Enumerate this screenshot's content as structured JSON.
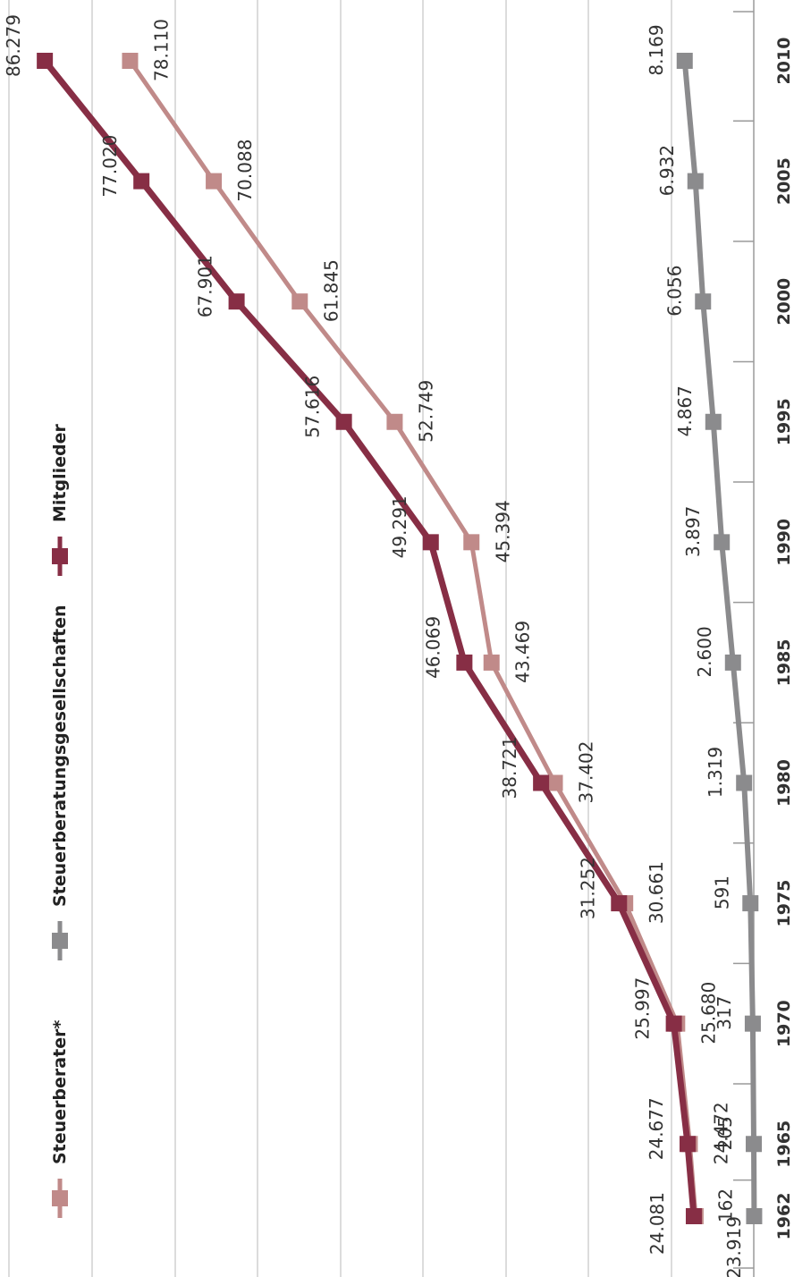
{
  "chart_data": {
    "type": "line",
    "orientation": "rotated-90",
    "x": [
      "1962",
      "1965",
      "1970",
      "1975",
      "1980",
      "1985",
      "1990",
      "1995",
      "2000",
      "2005",
      "2010"
    ],
    "grid": true,
    "legend_position": "left",
    "series": [
      {
        "name": "Steuerberater*",
        "color": "#c08a89",
        "values": [
          23919,
          24472,
          25680,
          30661,
          37402,
          43469,
          45394,
          52749,
          61845,
          70088,
          78110
        ],
        "labels": [
          "23.919",
          "24.472",
          "25.680",
          "30.661",
          "37.402",
          "43.469",
          "45.394",
          "52.749",
          "61.845",
          "70.088",
          "78.110"
        ]
      },
      {
        "name": "Steuerberatungsgesellschaften",
        "color": "#8b8b8d",
        "values": [
          162,
          205,
          317,
          591,
          1319,
          2600,
          3897,
          4867,
          6056,
          6932,
          8169
        ],
        "labels": [
          "162",
          "205",
          "317",
          "591",
          "1.319",
          "2.600",
          "3.897",
          "4.867",
          "6.056",
          "6.932",
          "8.169"
        ]
      },
      {
        "name": "Mitglieder",
        "color": "#872e45",
        "values": [
          24081,
          24677,
          25997,
          31252,
          38721,
          46069,
          49291,
          57616,
          67901,
          77020,
          86279
        ],
        "labels": [
          "24.081",
          "24.677",
          "25.997",
          "31.252",
          "38.721",
          "46.069",
          "49.291",
          "57.616",
          "67.901",
          "77.020",
          "86.279"
        ]
      }
    ]
  }
}
